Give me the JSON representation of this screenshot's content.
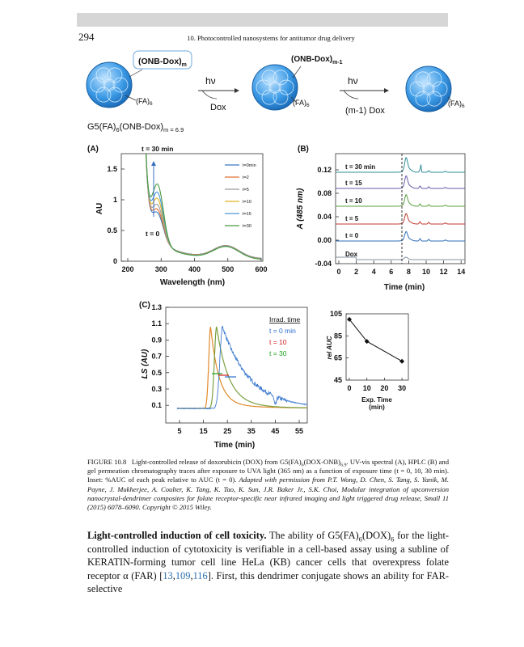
{
  "header": {
    "page": "294",
    "title": "10. Photocontrolled nanosystems for antitumor drug delivery"
  },
  "scheme": {
    "onb": "(ONB-Dox)",
    "onb_sub": "m",
    "onb2": "(ONB-Dox)",
    "onb2_sub": "m-1",
    "fa": [
      "(FA)",
      "(FA)",
      "(FA)"
    ],
    "fa_sub": "6",
    "hv": [
      "hν",
      "hν"
    ],
    "release1": "Dox",
    "release2": "(m-1) Dox",
    "formula": "G5(FA)",
    "formula_sub1": "6",
    "formula_mid": "(ONB-Dox)",
    "formula_sub2": "m = 6.9"
  },
  "panelA": {
    "label": "(A)",
    "note_top": "t = 30 min",
    "note_bottom": "t = 0",
    "ylabel": "AU",
    "xlabel": "Wavelength (nm)",
    "yticks": [
      "0",
      "0.5",
      "1",
      "1.5"
    ],
    "xticks": [
      "200",
      "300",
      "400",
      "500",
      "600"
    ],
    "legend": [
      "t=0min",
      "t=2",
      "t=5",
      "t=10",
      "t=15",
      "t=30"
    ]
  },
  "panelB": {
    "label": "(B)",
    "ylabel": "A (485 nm)",
    "xlabel": "Time (min)",
    "yticks": [
      "0.12",
      "0.08",
      "0.04",
      "0.00",
      "-0.04"
    ],
    "xticks": [
      "0",
      "2",
      "4",
      "6",
      "8",
      "10",
      "12",
      "14"
    ],
    "traces": [
      "t = 30 min",
      "t = 15",
      "t = 10",
      "t = 5",
      "t = 0",
      "Dox"
    ]
  },
  "panelC": {
    "label": "(C)",
    "ylabel": "LS (AU)",
    "xlabel": "Time (min)",
    "yticks": [
      "1.3",
      "1.1",
      "0.9",
      "0.7",
      "0.5",
      "0.3",
      "0.1"
    ],
    "xticks": [
      "5",
      "15",
      "25",
      "35",
      "45",
      "55"
    ],
    "legend_title": "Irrad. time",
    "legend": [
      "t = 0 min",
      "t = 10",
      "t = 30"
    ]
  },
  "inset": {
    "ylabel": "rel AUC",
    "xlabel": "Exp. Time",
    "xlabel2": "(min)",
    "yticks": [
      "105",
      "85",
      "65",
      "45"
    ],
    "xticks": [
      "0",
      "10",
      "20",
      "30"
    ],
    "x": [
      0,
      10,
      30
    ],
    "values": [
      100,
      80,
      62
    ]
  },
  "caption": {
    "label": "FIGURE 10.8",
    "p1": "Light-controlled release of doxorubicin (DOX) from G5(FA)",
    "s1": "6",
    "p2": "(DOX-ONB)",
    "s2": "6.9",
    "p3": ". UV-vis spectral (A), HPLC (B) and gel permeation chromatography traces after exposure to UVA light (365 nm) as a function of exposure time (t = 0, 10, 30 min). Inset: %AUC of each peak relative to AUC (t = 0).",
    "credit": "Adapted with permission from P.T. Wong, D. Chen, S. Tang, S. Yanik, M. Payne, J. Mukherjee, A. Coulter, K. Tang, K. Tao, K. Sun, J.R. Baker Jr., S.K. Choi, Modular integration of upconversion nanocrystal-dendrimer composites for folate receptor-specific near infrared imaging and light triggered drug release, Small 11 (2015) 6078–6090. Copyright © 2015 Wiley."
  },
  "body": {
    "heading": "Light-controlled induction of cell toxicity.",
    "t1": "The ability of G5(FA)",
    "s1": "6",
    "t2": "(DOX)",
    "s2": "6",
    "t3": "for the light-controlled induction of cytotoxicity is verifiable in a cell-based assay using a subline of KERATIN-forming tumor cell line HeLa (KB) cancer cells that overexpress folate receptor α (FAR) [",
    "refs": [
      "13",
      "109",
      "116"
    ],
    "t4": "]. First, this dendrimer conjugate shows an ability for FAR-selective"
  }
}
